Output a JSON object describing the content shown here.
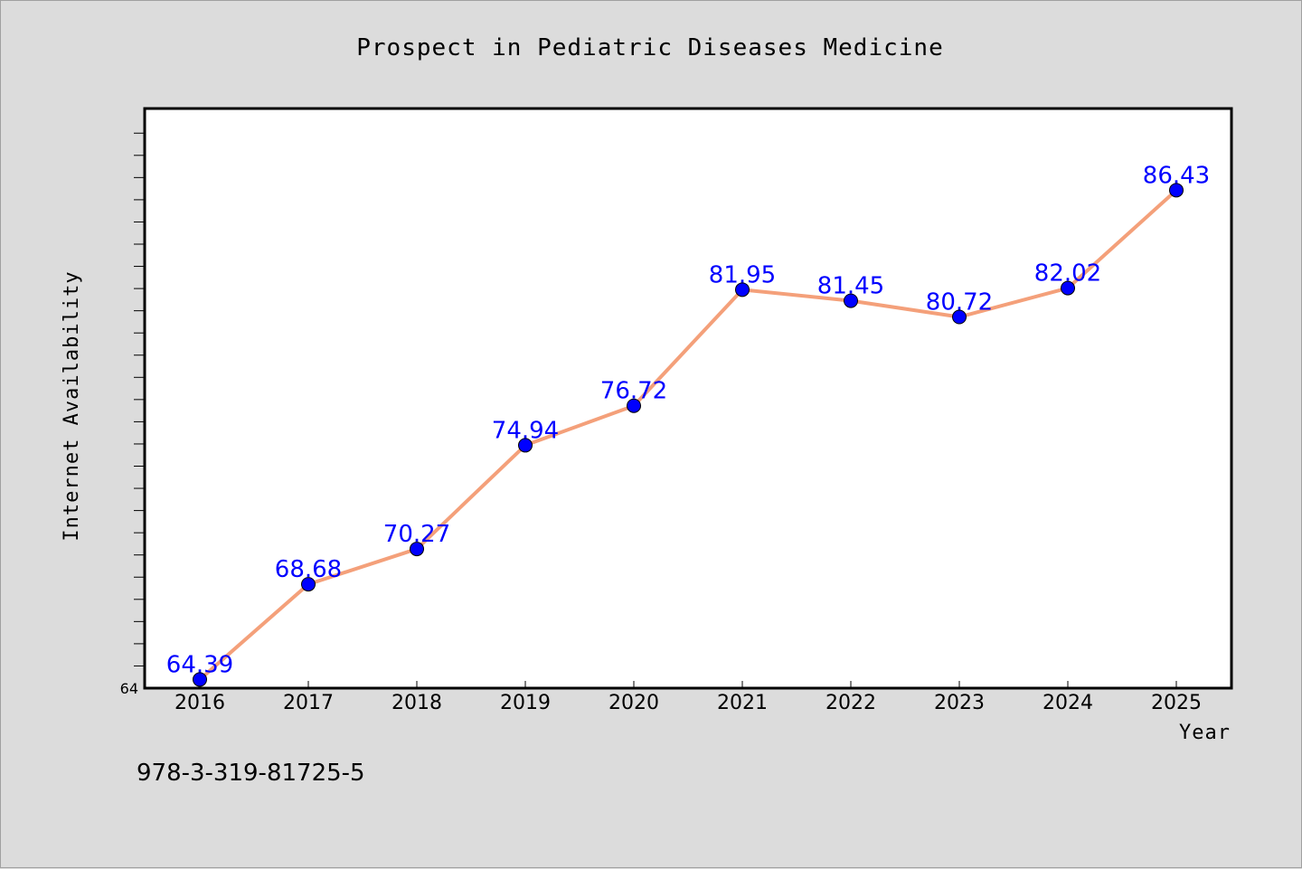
{
  "chart_data": {
    "type": "line",
    "title": "Prospect in Pediatric Diseases Medicine",
    "xlabel": "Year",
    "ylabel": "Internet Availability",
    "x": [
      "2016",
      "2017",
      "2018",
      "2019",
      "2020",
      "2021",
      "2022",
      "2023",
      "2024",
      "2025"
    ],
    "series": [
      {
        "values": [
          64.39,
          68.68,
          70.27,
          74.94,
          76.72,
          81.95,
          81.45,
          80.72,
          82.02,
          86.43
        ],
        "data_labels": [
          "64.39",
          "68.68",
          "70.27",
          "74.94",
          "76.72",
          "81.95",
          "81.45",
          "80.72",
          "82.02",
          "86.43"
        ],
        "line_color": "#f4a07a",
        "marker_color": "#0000ff"
      }
    ],
    "ylim": [
      64,
      90
    ],
    "y_tick_labels": [
      "64"
    ],
    "grid": false,
    "legend": "none",
    "plot_background": "#ffffff",
    "page_background": "#dcdcdc"
  },
  "footer": {
    "isbn": "978-3-319-81725-5"
  }
}
